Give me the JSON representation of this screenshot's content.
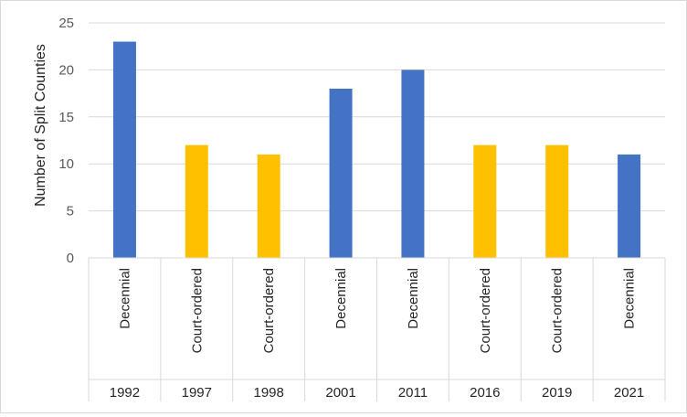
{
  "chart_data": {
    "type": "bar",
    "ylabel": "Number of Split Counties",
    "ylim": [
      0,
      25
    ],
    "yticks": [
      0,
      5,
      10,
      15,
      20,
      25
    ],
    "grid": true,
    "legend": "none",
    "colors": {
      "Decennial": "#4472c4",
      "Court-ordered": "#ffc000",
      "gridline": "#d9d9d9"
    },
    "categories": [
      {
        "year": "1992",
        "type": "Decennial",
        "value": 23
      },
      {
        "year": "1997",
        "type": "Court-ordered",
        "value": 12
      },
      {
        "year": "1998",
        "type": "Court-ordered",
        "value": 11
      },
      {
        "year": "2001",
        "type": "Decennial",
        "value": 18
      },
      {
        "year": "2011",
        "type": "Decennial",
        "value": 20
      },
      {
        "year": "2016",
        "type": "Court-ordered",
        "value": 12
      },
      {
        "year": "2019",
        "type": "Court-ordered",
        "value": 12
      },
      {
        "year": "2021",
        "type": "Decennial",
        "value": 11
      }
    ]
  }
}
